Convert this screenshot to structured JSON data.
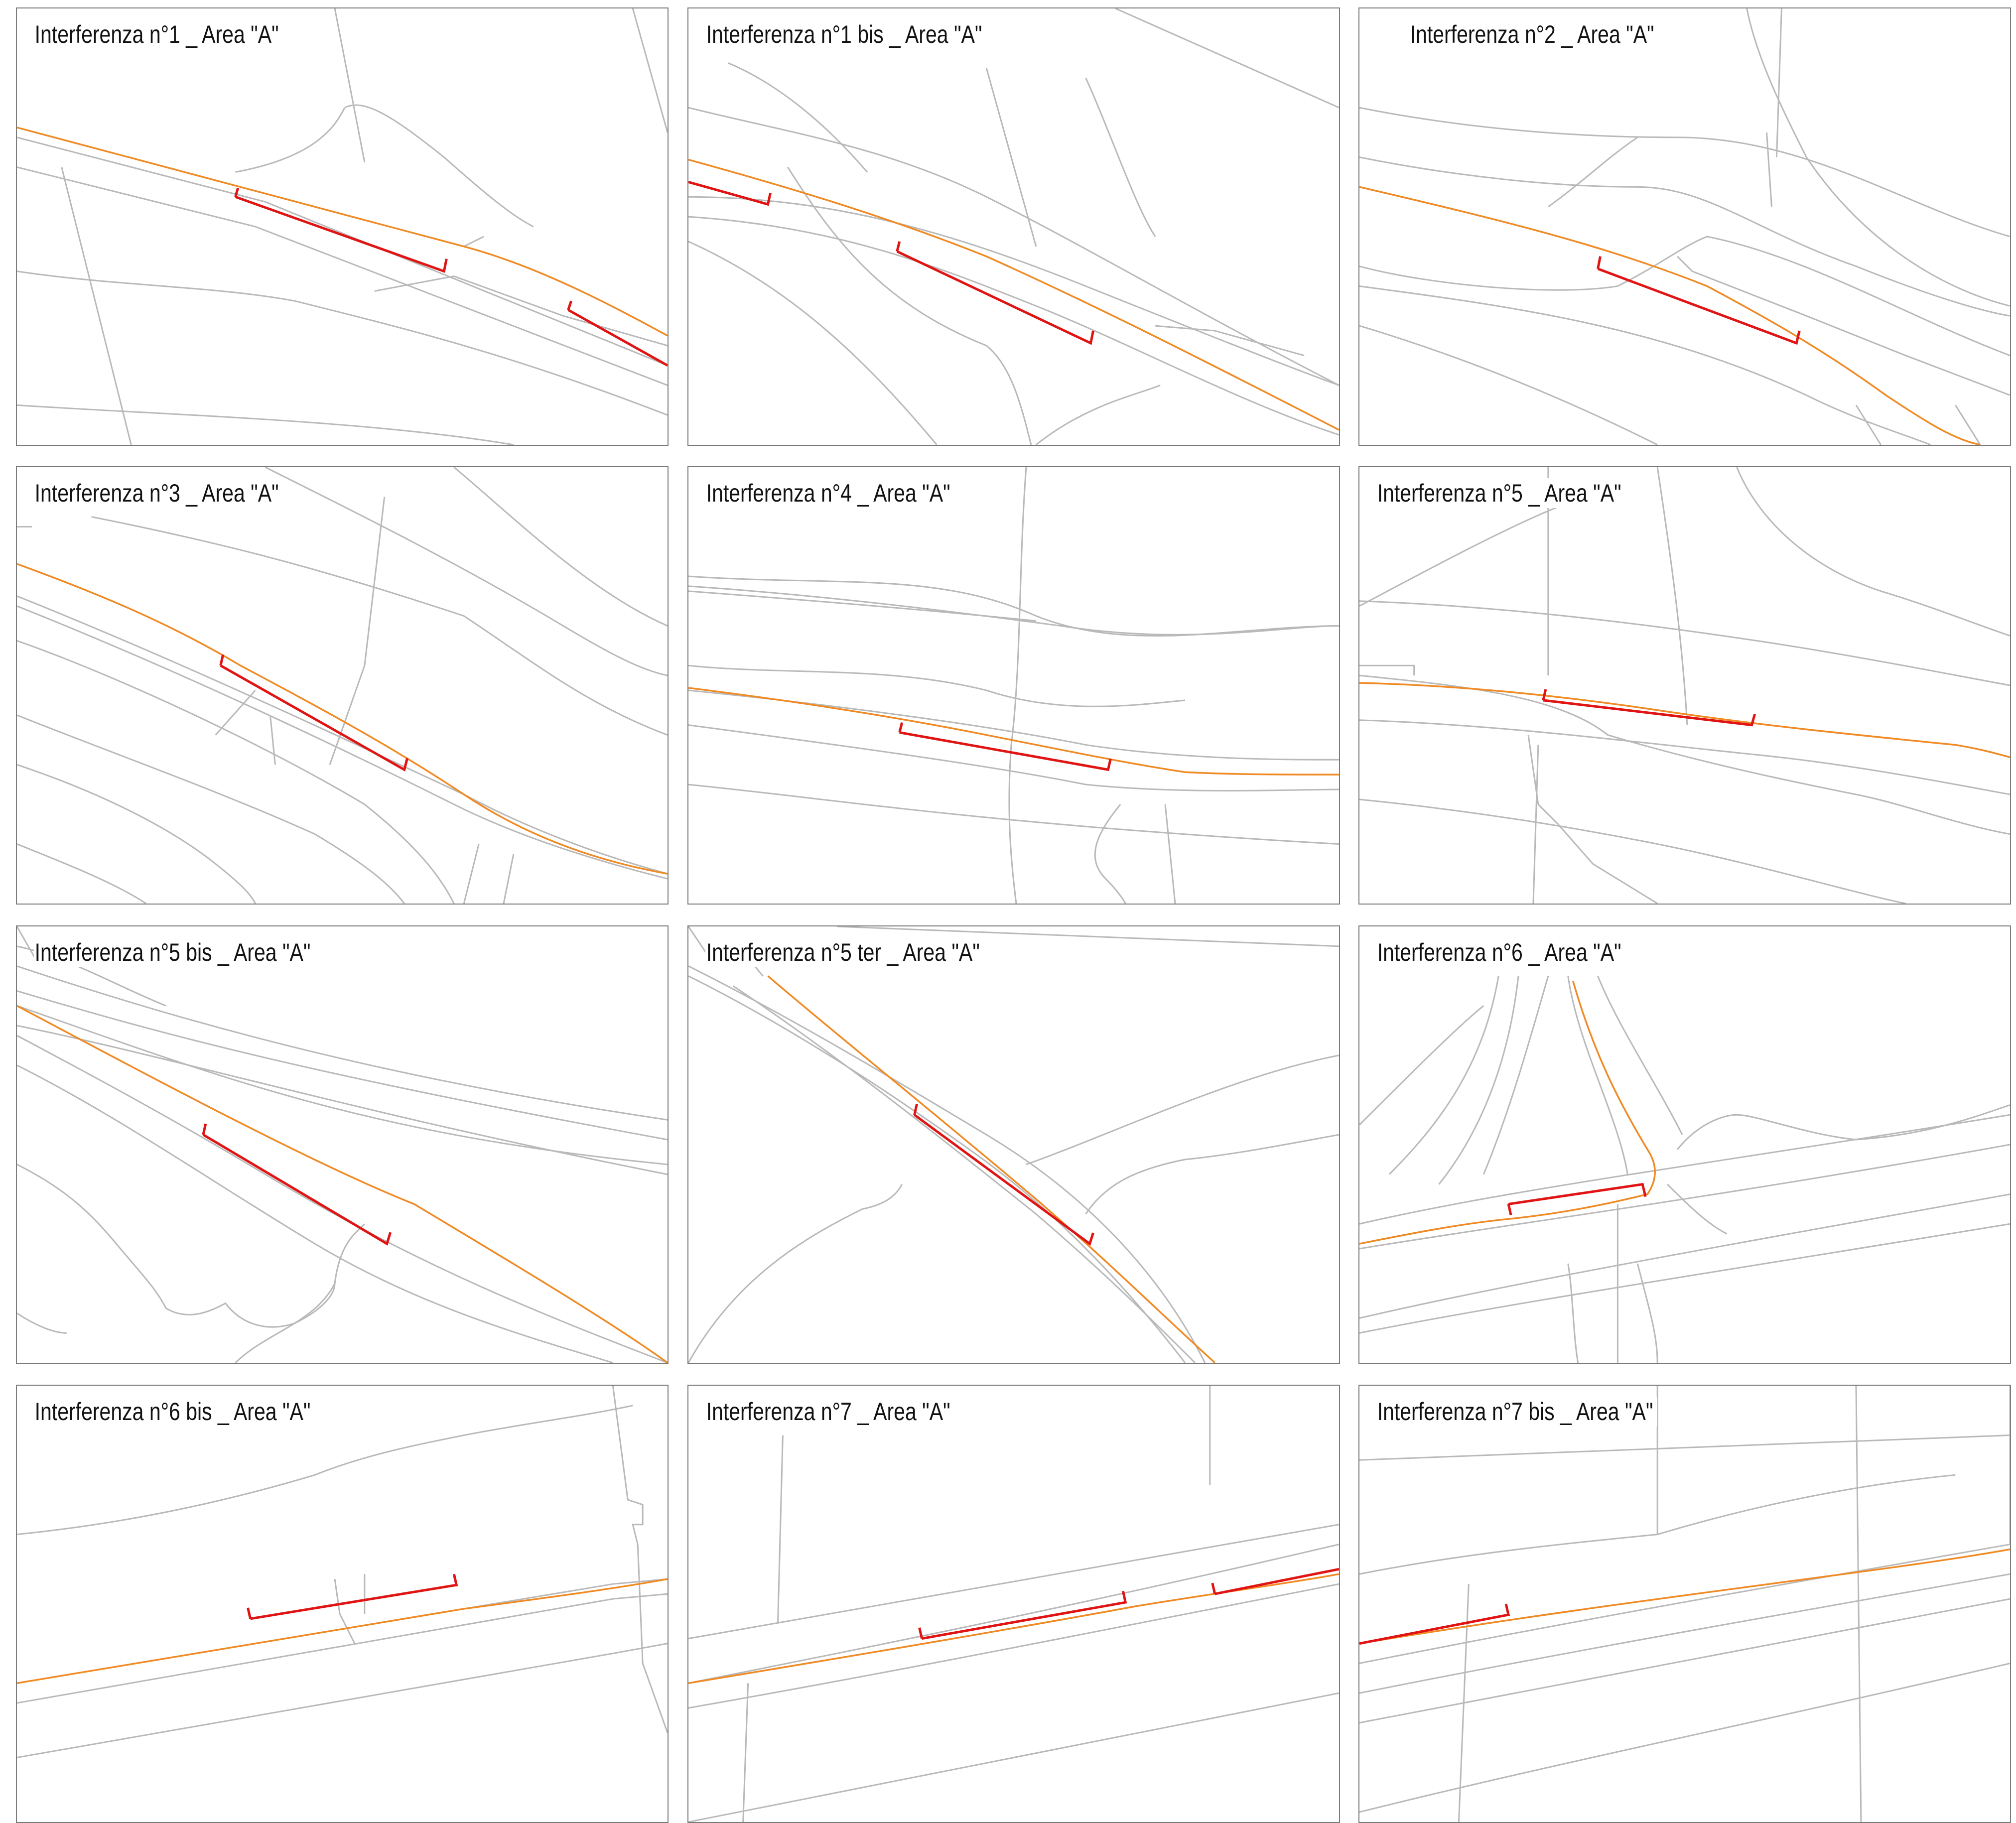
{
  "panels": [
    {
      "title": "Interferenza n°1 _ Area \"A\""
    },
    {
      "title": "Interferenza n°1 bis _ Area \"A\""
    },
    {
      "title": "Interferenza n°2 _ Area \"A\""
    },
    {
      "title": "Interferenza n°3 _ Area \"A\""
    },
    {
      "title": "Interferenza n°4 _ Area \"A\""
    },
    {
      "title": "Interferenza n°5 _ Area \"A\""
    },
    {
      "title": "Interferenza n°5 bis _ Area \"A\""
    },
    {
      "title": "Interferenza n°5 ter _ Area \"A\""
    },
    {
      "title": "Interferenza n°6 _ Area \"A\""
    },
    {
      "title": "Interferenza n°6 bis _ Area \"A\""
    },
    {
      "title": "Interferenza n°7 _ Area \"A\""
    },
    {
      "title": "Interferenza n°7 bis _ Area \"A\""
    }
  ],
  "colors": {
    "road_lines": "#b9b9b9",
    "orange_route": "#f08a24",
    "red_interference": "#e11414",
    "panel_border": "#7a7a7a"
  }
}
